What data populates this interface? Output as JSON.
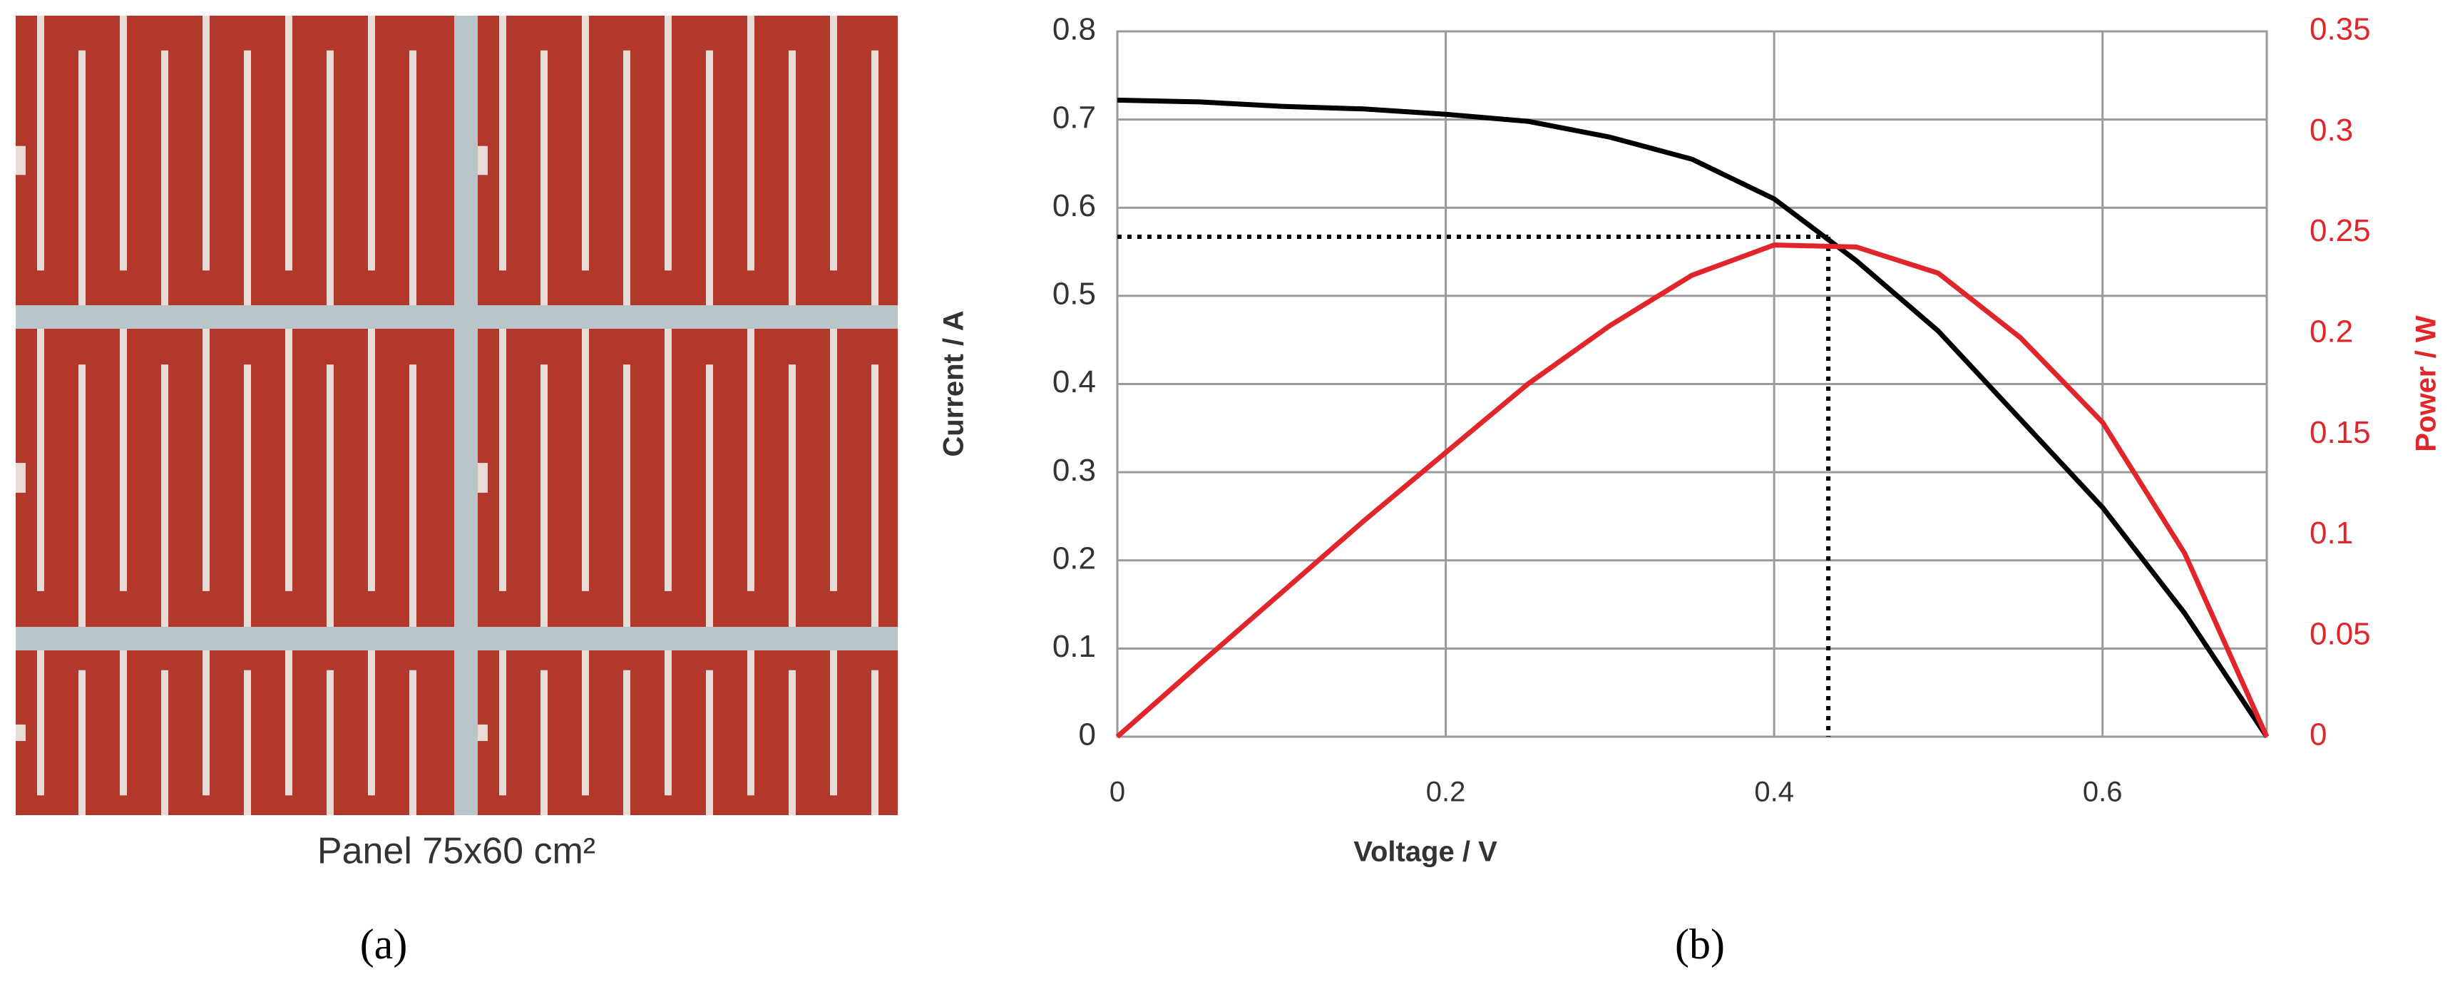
{
  "photo_caption": "Panel 75x60 cm²",
  "panel_a": "(a)",
  "panel_b": "(b)",
  "chart_data": {
    "type": "line",
    "x_label": "Voltage / V",
    "y_label": "Current / A",
    "y2_label": "Power / W",
    "x": [
      0,
      0.05,
      0.1,
      0.15,
      0.2,
      0.25,
      0.3,
      0.35,
      0.4,
      0.45,
      0.5,
      0.55,
      0.6,
      0.65,
      0.7
    ],
    "series": [
      {
        "name": "Current / A",
        "color": "#000000",
        "axis": "y",
        "values": [
          0.722,
          0.72,
          0.715,
          0.712,
          0.706,
          0.698,
          0.68,
          0.655,
          0.61,
          0.54,
          0.46,
          0.36,
          0.26,
          0.14,
          0
        ]
      },
      {
        "name": "Power / W",
        "color": "#e0262b",
        "axis": "y2",
        "values": [
          0,
          0.036,
          0.0715,
          0.107,
          0.141,
          0.175,
          0.204,
          0.229,
          0.244,
          0.243,
          0.23,
          0.198,
          0.156,
          0.091,
          0
        ]
      }
    ],
    "max_power_point": {
      "x": 0.433,
      "y": 0.567
    },
    "xlim": [
      0,
      0.7
    ],
    "xticks": [
      0,
      0.2,
      0.4,
      0.6
    ],
    "ylim": [
      0,
      0.8
    ],
    "yticks": [
      0,
      0.1,
      0.2,
      0.3,
      0.4,
      0.5,
      0.6,
      0.7,
      0.8
    ],
    "y2lim": [
      0,
      0.35
    ],
    "y2ticks": [
      0,
      0.05,
      0.1,
      0.15,
      0.2,
      0.25,
      0.3,
      0.35
    ],
    "grid": true
  }
}
